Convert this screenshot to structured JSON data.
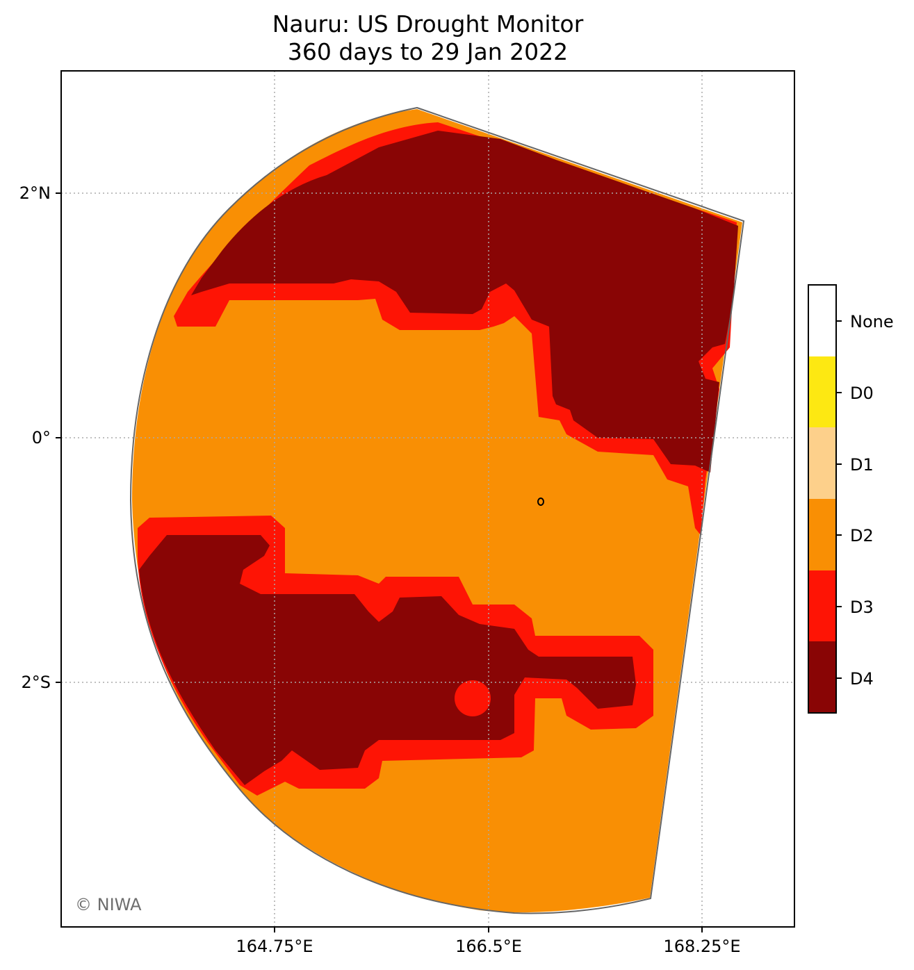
{
  "title": {
    "line1": "Nauru: US Drought Monitor",
    "line2": "360 days to 29 Jan 2022"
  },
  "map": {
    "lat_ticks": [
      "2°N",
      "0°",
      "2°S"
    ],
    "lon_ticks": [
      "164.75°E",
      "166.5°E",
      "168.25°E"
    ],
    "credit": "© NIWA",
    "colors": {
      "D4": "#890505",
      "D3": "#fe1405",
      "D2": "#f98f04",
      "outline": "#666666",
      "grid": "#aaaaaa"
    }
  },
  "legend": {
    "items": [
      {
        "label": "None",
        "color": "#ffffff"
      },
      {
        "label": "D0",
        "color": "#fde812"
      },
      {
        "label": "D1",
        "color": "#fdd08b"
      },
      {
        "label": "D2",
        "color": "#f98f04"
      },
      {
        "label": "D3",
        "color": "#fe1405"
      },
      {
        "label": "D4",
        "color": "#890505"
      }
    ]
  }
}
